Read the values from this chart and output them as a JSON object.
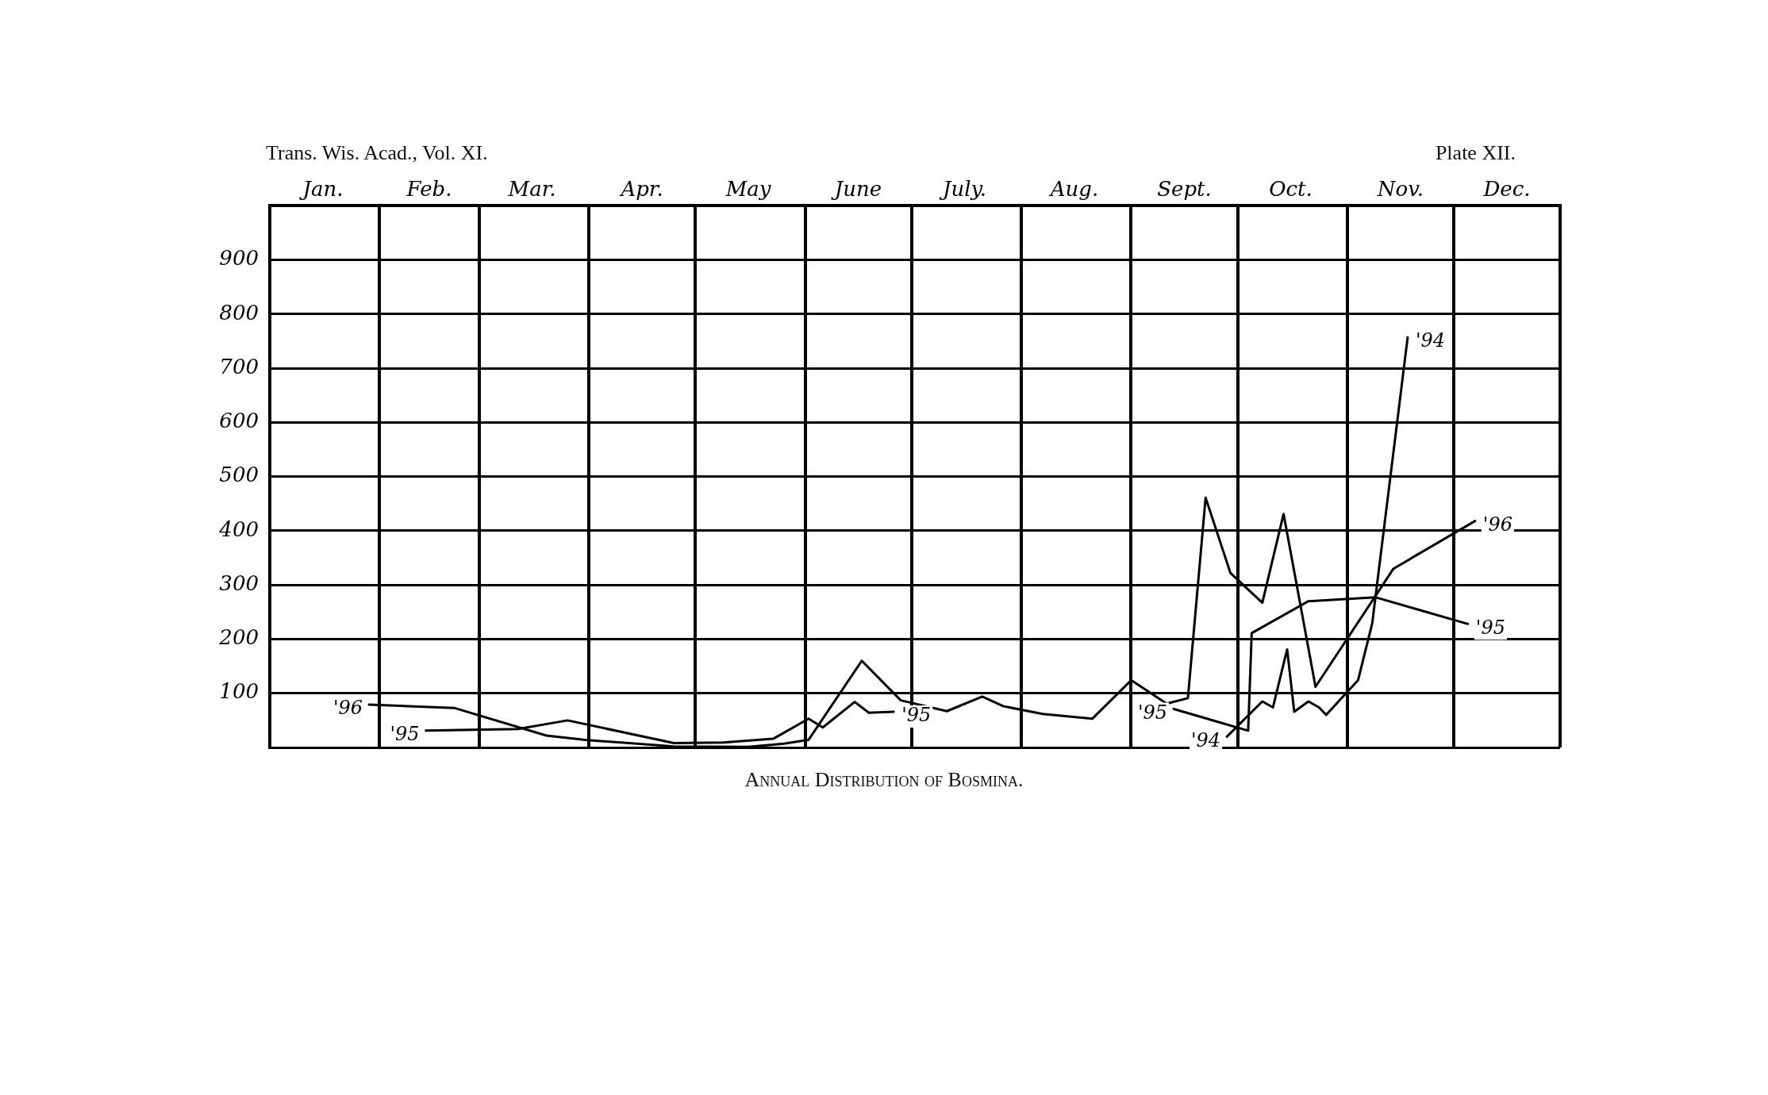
{
  "chart_data": {
    "type": "line",
    "title": "Annual Distribution of Bosmina.",
    "annotations": [
      "Trans. Wis. Acad., Vol. XI.",
      "Plate XII."
    ],
    "xlim": [
      "--01-01",
      "--12-31"
    ],
    "xticks": [
      {
        "value": "--01-01",
        "label": null
      },
      {
        "value": "--01-16",
        "label": "Jan."
      },
      {
        "value": "--02-01",
        "label": null
      },
      {
        "value": "--02-15",
        "label": "Feb."
      },
      {
        "value": "--03-01",
        "label": null
      },
      {
        "value": "--03-16",
        "label": "Mar."
      },
      {
        "value": "--04-01",
        "label": null
      },
      {
        "value": "--04-16",
        "label": "Apr."
      },
      {
        "value": "--05-01",
        "label": null
      },
      {
        "value": "--05-16",
        "label": "May"
      },
      {
        "value": "--06-01",
        "label": null
      },
      {
        "value": "--06-16",
        "label": "June"
      },
      {
        "value": "--07-01",
        "label": null
      },
      {
        "value": "--07-16",
        "label": "July."
      },
      {
        "value": "--08-01",
        "label": null
      },
      {
        "value": "--08-16",
        "label": "Aug."
      },
      {
        "value": "--09-01",
        "label": null
      },
      {
        "value": "--09-16",
        "label": "Sept."
      },
      {
        "value": "--10-01",
        "label": null
      },
      {
        "value": "--10-16",
        "label": "Oct."
      },
      {
        "value": "--11-01",
        "label": null
      },
      {
        "value": "--11-16",
        "label": "Nov."
      },
      {
        "value": "--12-01",
        "label": null
      },
      {
        "value": "--12-16",
        "label": "Dec."
      },
      {
        "value": "--12-31",
        "label": null
      }
    ],
    "ylim": [
      0,
      1000
    ],
    "yticks": [
      {
        "value": 0,
        "label": null
      },
      100,
      200,
      300,
      400,
      500,
      600,
      700,
      800,
      900,
      {
        "value": 1000,
        "label": null
      }
    ],
    "grid": true,
    "legend": false,
    "marker": "none",
    "line_style": "solid",
    "series": [
      {
        "name": "'96",
        "color": "#000000",
        "x": [
          "--01-29",
          "--02-22",
          "--03-20",
          "--03-31",
          "--04-25",
          "--05-16",
          "--05-26",
          "--06-02",
          "--06-17",
          "--06-28",
          "--07-11",
          "--07-21",
          "--07-27",
          "--08-07",
          "--08-21",
          "--09-01",
          "--09-11",
          "--09-17",
          "--09-22",
          "--09-29",
          "--10-08",
          "--10-14",
          "--10-23",
          "--11-14",
          "--12-07"
        ],
        "values": [
          79,
          73,
          22,
          14,
          2,
          1,
          7,
          14,
          160,
          87,
          67,
          94,
          76,
          62,
          53,
          124,
          81,
          91,
          461,
          322,
          267,
          431,
          112,
          330,
          418
        ]
      },
      {
        "name": "'95",
        "color": "#000000",
        "x": [
          "--02-14",
          "--03-12",
          "--03-26",
          "--04-25",
          "--05-09",
          "--05-23",
          "--06-02",
          "--06-06",
          "--06-15",
          "--06-19",
          "--06-26",
          "--08-01",
          "--09-13",
          "--10-04",
          "--10-05",
          "--10-21",
          "--11-09",
          "--12-05"
        ],
        "values": [
          31,
          34,
          50,
          8,
          9,
          16,
          53,
          37,
          84,
          64,
          66,
          null,
          71,
          31,
          211,
          270,
          277,
          228
        ]
      },
      {
        "name": "'94",
        "color": "#000000",
        "x": [
          "--09-28",
          "--10-08",
          "--10-11",
          "--10-15",
          "--10-17",
          "--10-21",
          "--10-24",
          "--10-26",
          "--11-04",
          "--11-08",
          "--11-18"
        ],
        "values": [
          20,
          85,
          74,
          181,
          66,
          85,
          74,
          60,
          124,
          229,
          757
        ]
      }
    ]
  }
}
